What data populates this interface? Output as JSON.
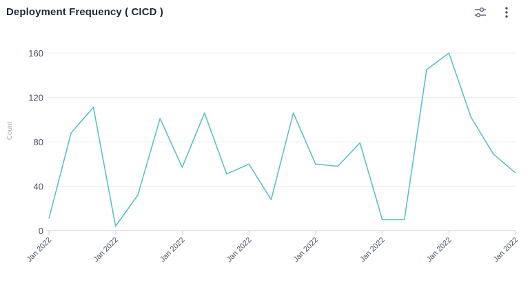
{
  "header": {
    "title": "Deployment Frequency ( CICD )",
    "filter_icon": "sliders-icon",
    "menu_icon": "vertical-dots-icon"
  },
  "chart_data": {
    "type": "line",
    "ylabel": "Count",
    "ylim": [
      0,
      160
    ],
    "yticks": [
      0,
      40,
      80,
      120,
      160
    ],
    "grid": true,
    "line_color": "#5bc0c8",
    "values": [
      11,
      88,
      111,
      4,
      32,
      101,
      57,
      106,
      51,
      60,
      28,
      106,
      60,
      58,
      79,
      10,
      10,
      145,
      160,
      102,
      69,
      52
    ],
    "x_tick_labels": [
      "Jan 2022",
      "Jan 2022",
      "Jan 2022",
      "Jan 2022",
      "Jan 2022",
      "Jan 2022",
      "Jan 2022",
      "Jan 2022"
    ],
    "x_tick_indices": [
      0,
      3,
      6,
      9,
      12,
      15,
      18,
      21
    ]
  }
}
